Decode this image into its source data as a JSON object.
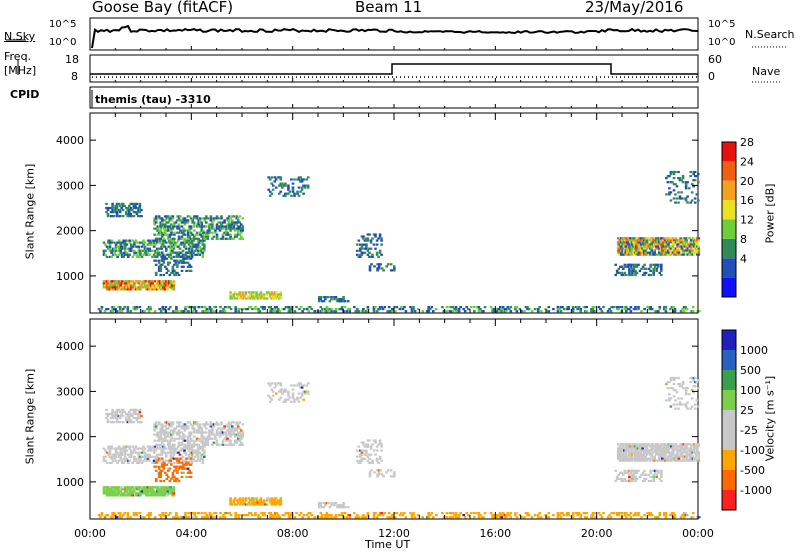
{
  "header": {
    "station": "Goose Bay (fitACF)",
    "beam": "Beam 11",
    "date": "23/May/2016"
  },
  "top_panels": {
    "nsky_label": "N.Sky",
    "nsearch_label": "N.Search",
    "left_ticks": [
      "10^5",
      "10^0"
    ],
    "right_ticks": [
      "10^5",
      "10^0"
    ],
    "freq_label_1": "Freq.",
    "freq_label_2": "[MHz]",
    "freq_ticks": [
      "18",
      "8"
    ],
    "nave_ticks": [
      "60",
      "0"
    ],
    "nave_label": "Nave",
    "cpid_label": "CPID",
    "cpid_text": "themis (tau) -3310"
  },
  "colors": {
    "power": [
      "#1010ff",
      "#1e50b8",
      "#2e8b57",
      "#6ccf3a",
      "#e8e020",
      "#f7a020",
      "#f06010",
      "#e81010"
    ],
    "velocity": [
      "#ff2020",
      "#ff6a00",
      "#ffa500",
      "#c8c8c8",
      "#c8c8c8",
      "#7ad04a",
      "#3aa050",
      "#2860c0",
      "#2020c0"
    ]
  },
  "chart_data": [
    {
      "type": "heatmap",
      "title": "Power",
      "ylabel": "Slant Range [km]",
      "xlabel": "Time UT",
      "ylim": [
        180,
        4600
      ],
      "xlim": [
        0,
        24
      ],
      "y_ticks": [
        "4000",
        "3000",
        "2000",
        "1000"
      ],
      "x_ticks": [
        "00:00",
        "04:00",
        "08:00",
        "12:00",
        "16:00",
        "20:00",
        "00:00"
      ],
      "colorbar_label": "Power [dB]",
      "colorbar_ticks": [
        "28",
        "24",
        "20",
        "16",
        "12",
        "8",
        "4"
      ]
    },
    {
      "type": "heatmap",
      "title": "Velocity",
      "ylabel": "Slant Range [km]",
      "xlabel": "Time UT",
      "ylim": [
        180,
        4600
      ],
      "xlim": [
        0,
        24
      ],
      "y_ticks": [
        "4000",
        "3000",
        "2000",
        "1000"
      ],
      "x_ticks": [
        "00:00",
        "04:00",
        "08:00",
        "12:00",
        "16:00",
        "20:00",
        "00:00"
      ],
      "colorbar_label": "Velocity [m s⁻¹]",
      "colorbar_ticks": [
        "1000",
        "500",
        "100",
        "25",
        "-25",
        "-100",
        "-500",
        "-1000"
      ]
    }
  ]
}
